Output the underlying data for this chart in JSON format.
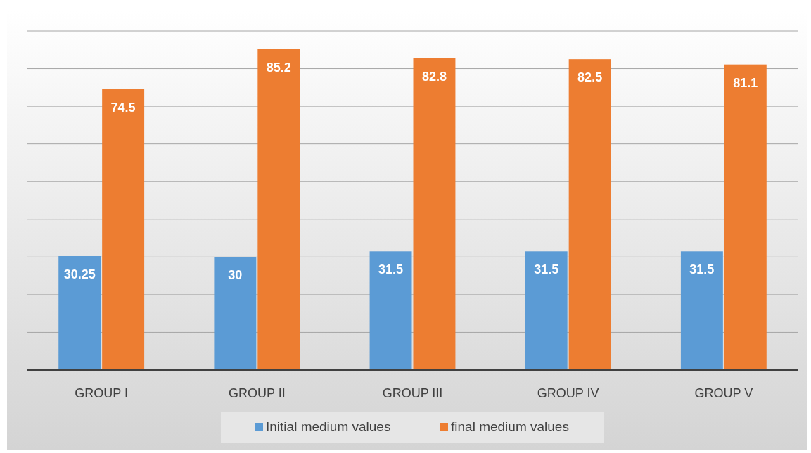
{
  "chart_data": {
    "type": "bar",
    "categories": [
      "GROUP I",
      "GROUP II",
      "GROUP III",
      "GROUP IV",
      "GROUP V"
    ],
    "series": [
      {
        "name": "Initial medium values",
        "color": "#5b9bd5",
        "values": [
          30.25,
          30,
          31.5,
          31.5,
          31.5
        ]
      },
      {
        "name": "final medium values",
        "color": "#ed7d31",
        "values": [
          74.5,
          85.2,
          82.8,
          82.5,
          81.1
        ]
      }
    ],
    "ylim": [
      0,
      90
    ],
    "yticks": [
      {
        "value": 0,
        "label": null
      },
      {
        "value": 10,
        "label": null
      },
      {
        "value": 20,
        "label": null
      },
      {
        "value": 30,
        "label": null
      },
      {
        "value": 40,
        "label": null
      },
      {
        "value": 50,
        "label": null
      },
      {
        "value": 60,
        "label": null
      },
      {
        "value": 70,
        "label": null
      },
      {
        "value": 80,
        "label": null
      },
      {
        "value": 90,
        "label": null
      }
    ],
    "grid": "y",
    "legend": "bottom",
    "data_labels": true
  }
}
